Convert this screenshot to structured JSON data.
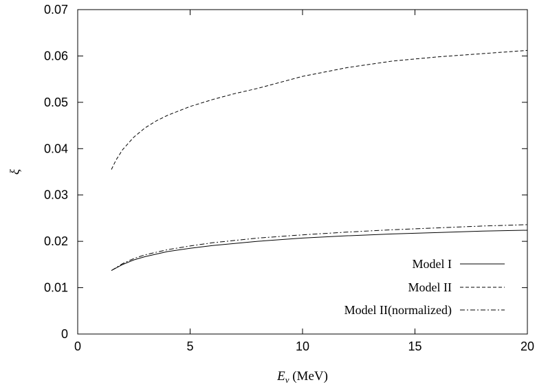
{
  "chart_data": {
    "type": "line",
    "title": "",
    "xlabel_var": "E",
    "xlabel_sub": "ν",
    "xlabel_unit": " (MeV)",
    "ylabel": "ξ",
    "xlim": [
      0,
      20
    ],
    "ylim": [
      0,
      0.07
    ],
    "x_ticks": [
      0,
      5,
      10,
      15,
      20
    ],
    "x_tick_labels": [
      "0",
      "5",
      "10",
      "15",
      "20"
    ],
    "y_ticks": [
      0,
      0.01,
      0.02,
      0.03,
      0.04,
      0.05,
      0.06,
      0.07
    ],
    "y_tick_labels": [
      "0",
      "0.01",
      "0.02",
      "0.03",
      "0.04",
      "0.05",
      "0.06",
      "0.07"
    ],
    "grid": false,
    "legend_position": "bottom-right",
    "x": [
      1.5,
      2,
      2.5,
      3,
      4,
      5,
      6,
      8,
      10,
      12,
      14,
      16,
      18,
      20
    ],
    "series": [
      {
        "name": "Model I",
        "style": "solid",
        "values": [
          0.0137,
          0.015,
          0.016,
          0.0167,
          0.0178,
          0.0185,
          0.0191,
          0.02,
          0.0207,
          0.0212,
          0.0216,
          0.0219,
          0.0222,
          0.0224
        ]
      },
      {
        "name": "Model II",
        "style": "dashed",
        "x": [
          1.5,
          1.7,
          2,
          2.5,
          3,
          3.5,
          4,
          5,
          6,
          7,
          8,
          10,
          12,
          14,
          16,
          18,
          20
        ],
        "values": [
          0.0355,
          0.0375,
          0.0398,
          0.0425,
          0.0445,
          0.046,
          0.0472,
          0.0491,
          0.0506,
          0.0519,
          0.053,
          0.0556,
          0.0575,
          0.0589,
          0.0598,
          0.0605,
          0.0612
        ]
      },
      {
        "name": "Model II(normalized)",
        "style": "dashdot",
        "values": [
          0.0137,
          0.0152,
          0.0163,
          0.0171,
          0.0182,
          0.019,
          0.0197,
          0.0207,
          0.0214,
          0.022,
          0.0225,
          0.0229,
          0.0233,
          0.0236
        ]
      }
    ]
  }
}
